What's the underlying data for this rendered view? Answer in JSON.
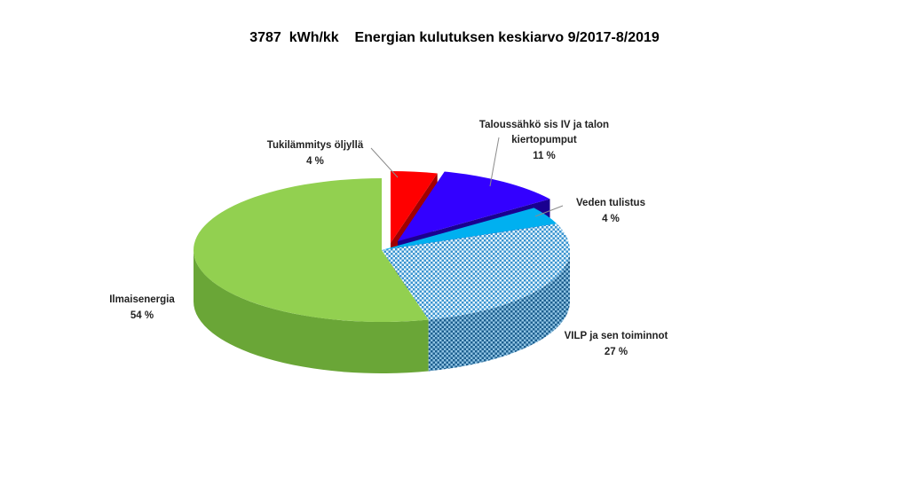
{
  "chart_data": {
    "type": "pie",
    "title": "3787  kWh/kk    Energian kulutuksen keskiarvo 9/2017-8/2019",
    "slices": [
      {
        "label": "Tukilämmitys öljyllä",
        "value": 4,
        "value_label": "4 %",
        "color": "#ff0000",
        "pattern": "solid"
      },
      {
        "label": "Taloussähkö sis IV ja talon kiertopumput",
        "value": 11,
        "value_label": "11 %",
        "color": "#3300ff",
        "pattern": "solid"
      },
      {
        "label": "Veden tulistus",
        "value": 4,
        "value_label": "4 %",
        "color": "#00b0f0",
        "pattern": "solid"
      },
      {
        "label": "VILP ja sen toiminnot",
        "value": 27,
        "value_label": "27 %",
        "color": "#3399cc",
        "pattern": "checker"
      },
      {
        "label": "Ilmaisenergia",
        "value": 54,
        "value_label": "54 %",
        "color": "#92d050",
        "pattern": "solid"
      }
    ],
    "three_d": true,
    "exploded_slices": [
      "Tukilämmitys öljyllä",
      "Taloussähkö sis IV ja talon kiertopumput"
    ],
    "legend": "none",
    "data_labels": "outside with leader lines"
  }
}
